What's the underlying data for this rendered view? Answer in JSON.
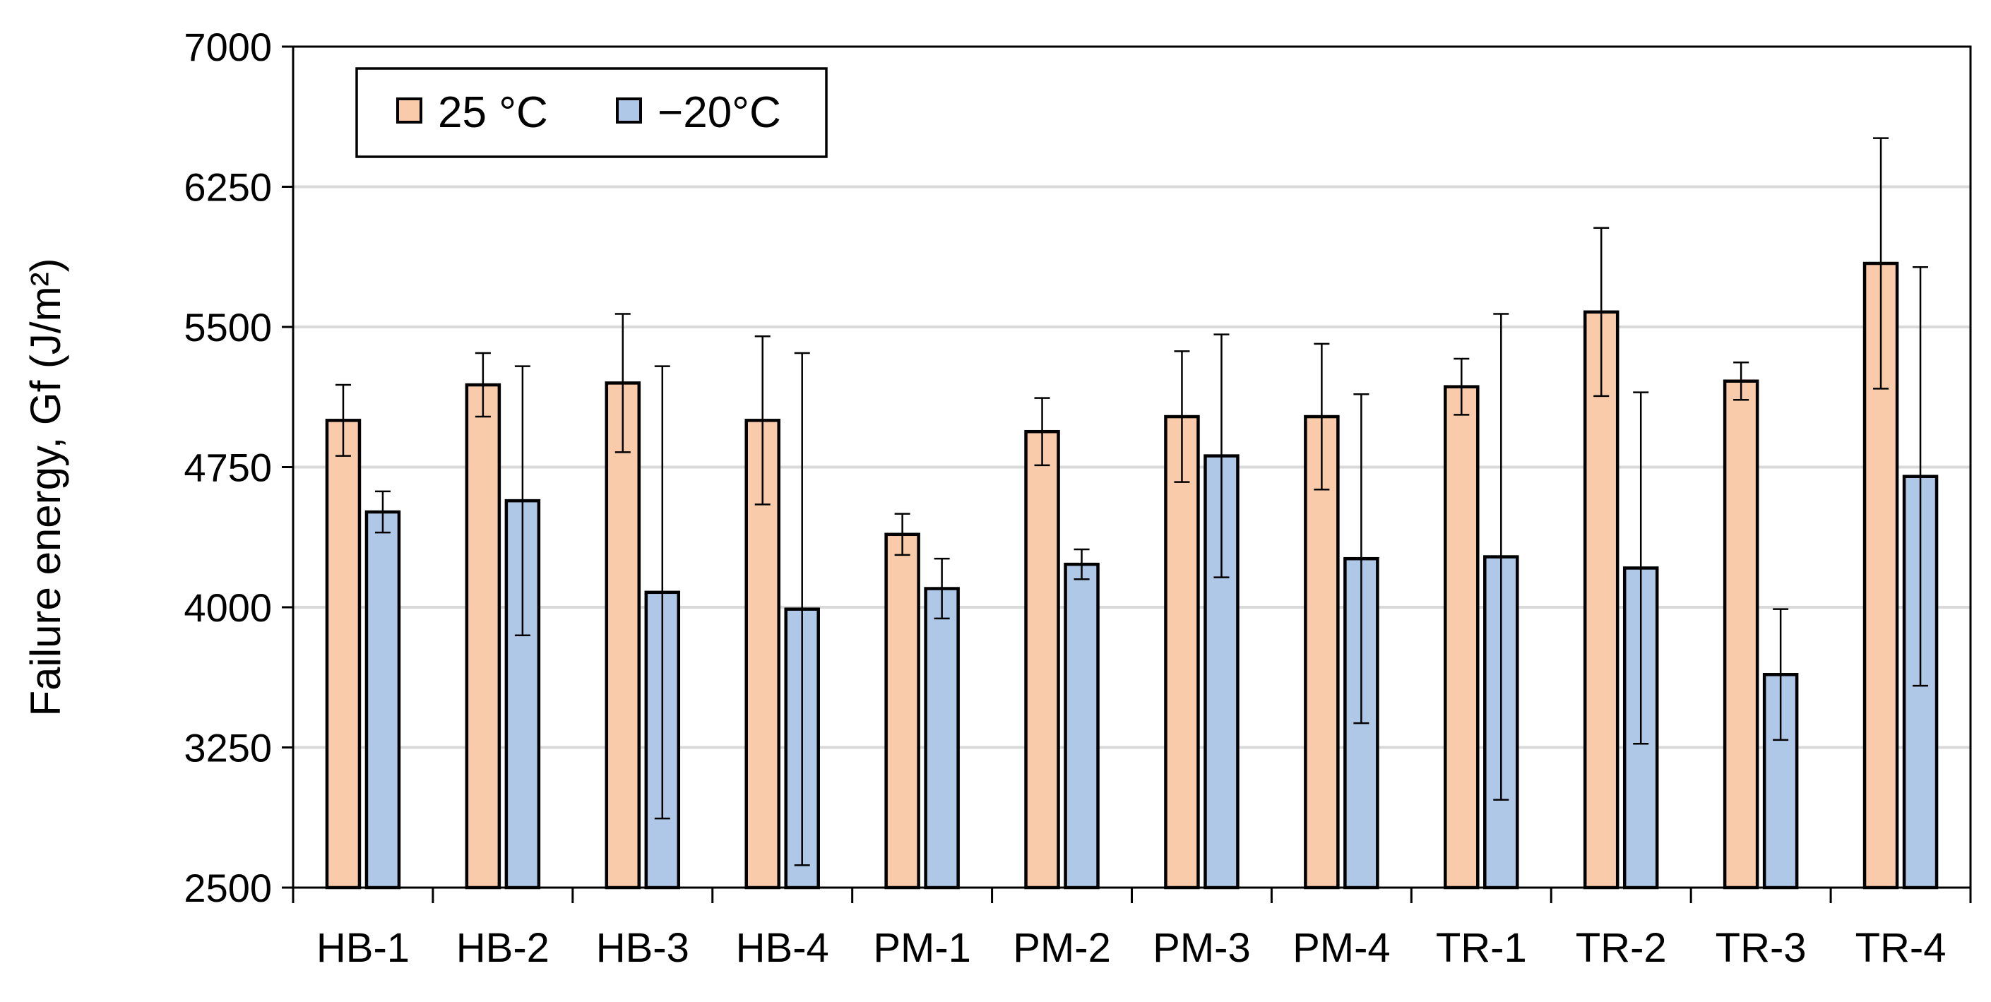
{
  "chart_data": {
    "type": "bar",
    "ylabel": "Failure energy, Gf (J/m²)",
    "ylim": [
      2500,
      7000
    ],
    "yticks": [
      2500,
      3250,
      4000,
      4750,
      5500,
      6250,
      7000
    ],
    "ytick_labels": [
      "2500",
      "3250",
      "4000",
      "4750",
      "5500",
      "6250",
      "7000"
    ],
    "grid": true,
    "legend_position": "top-left",
    "categories": [
      "HB-1",
      "HB-2",
      "HB-3",
      "HB-4",
      "PM-1",
      "PM-2",
      "PM-3",
      "PM-4",
      "TR-1",
      "TR-2",
      "TR-3",
      "TR-4"
    ],
    "series": [
      {
        "name": "25 °C",
        "color": "#F9CBAA",
        "values": [
          5000,
          5190,
          5200,
          5000,
          4390,
          4940,
          5020,
          5020,
          5180,
          5580,
          5210,
          5840
        ],
        "errors": [
          190,
          170,
          370,
          450,
          110,
          180,
          350,
          390,
          150,
          450,
          100,
          670
        ]
      },
      {
        "name": "−20°C",
        "color": "#B0C8E8",
        "values": [
          4510,
          4570,
          4080,
          3990,
          4100,
          4230,
          4810,
          4260,
          4270,
          4210,
          3640,
          4700
        ],
        "errors": [
          110,
          720,
          1210,
          1370,
          160,
          80,
          650,
          880,
          1300,
          940,
          350,
          1120
        ]
      }
    ]
  }
}
